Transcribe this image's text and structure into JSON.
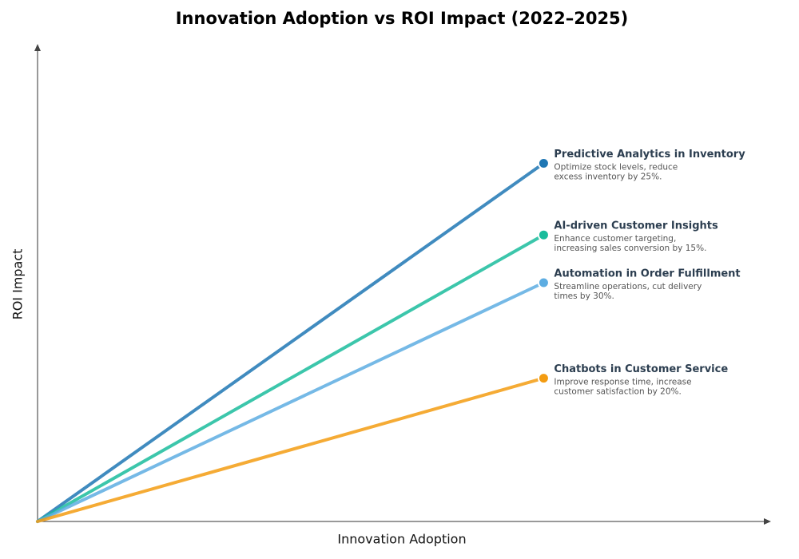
{
  "chart_data": {
    "type": "line",
    "title": "Innovation Adoption vs ROI Impact (2022–2025)",
    "x_label": "Innovation Adoption",
    "y_label": "ROI Impact",
    "x": [
      0,
      0.69
    ],
    "xlim": [
      0,
      1
    ],
    "ylim": [
      0,
      1
    ],
    "series": [
      {
        "name": "Predictive Analytics in Inventory",
        "color": "#1f77b4",
        "values": [
          0,
          0.75
        ],
        "description": [
          "Optimize stock levels, reduce",
          "excess inventory by 25%."
        ]
      },
      {
        "name": "AI-driven Customer Insights",
        "color": "#1abc9c",
        "values": [
          0,
          0.6
        ],
        "description": [
          "Enhance customer targeting,",
          "increasing sales conversion by 15%."
        ]
      },
      {
        "name": "Automation in Order Fulfillment",
        "color": "#5dade2",
        "values": [
          0,
          0.5
        ],
        "description": [
          "Streamline operations, cut delivery",
          "times by 30%."
        ]
      },
      {
        "name": "Chatbots in Customer Service",
        "color": "#f39c12",
        "values": [
          0,
          0.3
        ],
        "description": [
          "Improve response time, increase",
          "customer satisfaction by 20%."
        ]
      }
    ]
  }
}
